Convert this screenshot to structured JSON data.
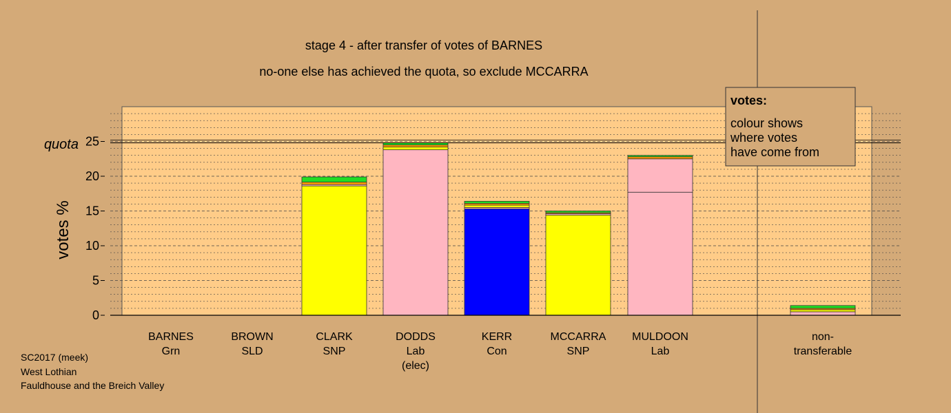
{
  "chart_data": {
    "type": "bar",
    "stacked": true,
    "title": "stage 4 - after transfer of votes of BARNES",
    "subtitle": "no-one else has achieved the quota, so exclude MCCARRA",
    "ylabel": "votes %",
    "ylim": [
      0,
      30
    ],
    "yticks": [
      "0",
      "5",
      "10",
      "15",
      "20",
      "25"
    ],
    "quota_label": "quota",
    "quota_value": 24.8,
    "grid": true,
    "categories": [
      {
        "name": "BARNES",
        "party": "Grn",
        "note": ""
      },
      {
        "name": "BROWN",
        "party": "SLD",
        "note": ""
      },
      {
        "name": "CLARK",
        "party": "SNP",
        "note": ""
      },
      {
        "name": "DODDS",
        "party": "Lab",
        "note": "(elec)"
      },
      {
        "name": "KERR",
        "party": "Con",
        "note": ""
      },
      {
        "name": "MCCARRA",
        "party": "SNP",
        "note": ""
      },
      {
        "name": "MULDOON",
        "party": "Lab",
        "note": ""
      },
      {
        "name": "non-",
        "party": "transferable",
        "note": ""
      }
    ],
    "stacks": [
      [],
      [],
      [
        {
          "value": 18.6,
          "color": "#ffff00"
        },
        {
          "value": 0.2,
          "color": "#ffb6c1"
        },
        {
          "value": 0.35,
          "color": "#ff9900"
        },
        {
          "value": 0.75,
          "color": "#22dd22"
        }
      ],
      [
        {
          "value": 23.8,
          "color": "#ffb6c1"
        },
        {
          "value": 0.4,
          "color": "#ffff00"
        },
        {
          "value": 0.3,
          "color": "#ff9900"
        },
        {
          "value": 0.3,
          "color": "#22dd22"
        }
      ],
      [
        {
          "value": 15.3,
          "color": "#0000ff"
        },
        {
          "value": 0.2,
          "color": "#ffb6c1"
        },
        {
          "value": 0.35,
          "color": "#ffff00"
        },
        {
          "value": 0.25,
          "color": "#ff9900"
        },
        {
          "value": 0.3,
          "color": "#22dd22"
        }
      ],
      [
        {
          "value": 14.4,
          "color": "#ffff00"
        },
        {
          "value": 0.2,
          "color": "#ffb6c1"
        },
        {
          "value": 0.15,
          "color": "#ff9900"
        },
        {
          "value": 0.25,
          "color": "#22dd22"
        }
      ],
      [
        {
          "value": 17.7,
          "color": "#ffb6c1"
        },
        {
          "value": 4.8,
          "color": "#ffb6c1"
        },
        {
          "value": 0.3,
          "color": "#ff9900"
        },
        {
          "value": 0.2,
          "color": "#22dd22"
        }
      ],
      [
        {
          "value": 0.5,
          "color": "#ffb6c1"
        },
        {
          "value": 0.3,
          "color": "#ffff00"
        },
        {
          "value": 0.2,
          "color": "#ff9900"
        },
        {
          "value": 0.4,
          "color": "#22dd22"
        }
      ]
    ],
    "legend": {
      "heading": "votes:",
      "lines": [
        "colour shows",
        "where votes",
        "have come from"
      ]
    }
  },
  "info": {
    "line1": "SC2017 (meek)",
    "line2": "West Lothian",
    "line3": "Fauldhouse and the Breich Valley"
  },
  "colors": {
    "background": "#d4aa78",
    "plot_background": "#ffcc88",
    "legend_background": "#d4aa78"
  }
}
